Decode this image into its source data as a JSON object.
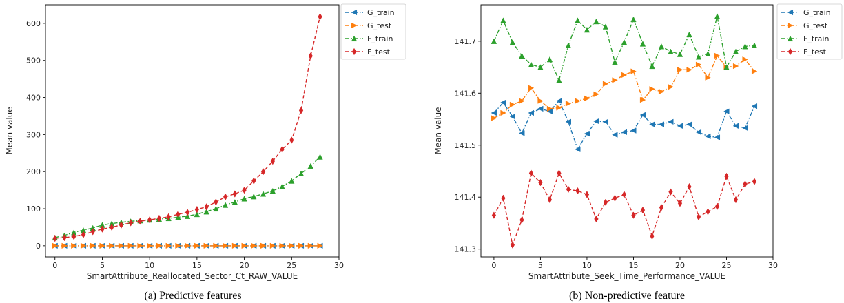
{
  "chart_data": [
    {
      "type": "line",
      "caption": "(a)  Predictive features",
      "xlabel": "SmartAttribute_Reallocated_Sector_Ct_RAW_VALUE",
      "ylabel": "Mean value",
      "xlim": [
        -1,
        30
      ],
      "ylim": [
        -30,
        650
      ],
      "xticks": [
        0,
        5,
        10,
        15,
        20,
        25,
        30
      ],
      "yticks": [
        0,
        100,
        200,
        300,
        400,
        500,
        600
      ],
      "grid": false,
      "legend_position": "outside-right-top",
      "x": [
        0,
        1,
        2,
        3,
        4,
        5,
        6,
        7,
        8,
        9,
        10,
        11,
        12,
        13,
        14,
        15,
        16,
        17,
        18,
        19,
        20,
        21,
        22,
        23,
        24,
        25,
        26,
        27,
        28
      ],
      "series": [
        {
          "name": "G_train",
          "color": "#1f77b4",
          "marker": "triangle-left",
          "linestyle": "dash-dot",
          "values": [
            0,
            0,
            0,
            0,
            0,
            0,
            0,
            0,
            0,
            0,
            0,
            0,
            0,
            0,
            0,
            0,
            0,
            0,
            0,
            0,
            0,
            0,
            0,
            0,
            0,
            0,
            0,
            0,
            0
          ]
        },
        {
          "name": "G_test",
          "color": "#ff7f0e",
          "marker": "triangle-right",
          "linestyle": "dash-dot",
          "values": [
            0,
            0,
            0,
            0,
            0,
            0,
            0,
            0,
            0,
            0,
            0,
            0,
            0,
            0,
            0,
            0,
            0,
            0,
            0,
            0,
            0,
            0,
            0,
            0,
            0,
            0,
            0,
            0,
            0
          ]
        },
        {
          "name": "F_train",
          "color": "#2ca02c",
          "marker": "triangle-up",
          "linestyle": "dash-dot",
          "values": [
            22,
            28,
            36,
            42,
            48,
            56,
            60,
            63,
            66,
            68,
            70,
            72,
            74,
            77,
            80,
            85,
            92,
            100,
            110,
            118,
            127,
            133,
            140,
            148,
            160,
            175,
            195,
            215,
            240
          ]
        },
        {
          "name": "F_test",
          "color": "#d62728",
          "marker": "diamond",
          "linestyle": "dashed",
          "values": [
            20,
            22,
            25,
            30,
            38,
            45,
            50,
            56,
            62,
            66,
            70,
            74,
            78,
            85,
            90,
            98,
            105,
            118,
            132,
            140,
            150,
            175,
            200,
            228,
            260,
            285,
            365,
            512,
            618
          ]
        }
      ]
    },
    {
      "type": "line",
      "caption": "(b)  Non-predictive feature",
      "xlabel": "SmartAttribute_Seek_Time_Performance_VALUE",
      "ylabel": "Mean value",
      "xlim": [
        -1.4,
        30
      ],
      "ylim": [
        141.285,
        141.77
      ],
      "xticks": [
        0,
        5,
        10,
        15,
        20,
        25,
        30
      ],
      "yticks": [
        141.3,
        141.4,
        141.5,
        141.6,
        141.7
      ],
      "grid": false,
      "legend_position": "outside-right-top",
      "x": [
        0,
        1,
        2,
        3,
        4,
        5,
        6,
        7,
        8,
        9,
        10,
        11,
        12,
        13,
        14,
        15,
        16,
        17,
        18,
        19,
        20,
        21,
        22,
        23,
        24,
        25,
        26,
        27,
        28
      ],
      "series": [
        {
          "name": "G_train",
          "color": "#1f77b4",
          "marker": "triangle-left",
          "linestyle": "dash-dot",
          "values": [
            141.562,
            141.582,
            141.555,
            141.523,
            141.562,
            141.57,
            141.565,
            141.585,
            141.545,
            141.492,
            141.522,
            141.546,
            141.545,
            141.52,
            141.525,
            141.528,
            141.558,
            141.54,
            141.54,
            141.545,
            141.537,
            141.54,
            141.525,
            141.517,
            141.515,
            141.565,
            141.537,
            141.533,
            141.575
          ]
        },
        {
          "name": "G_test",
          "color": "#ff7f0e",
          "marker": "triangle-right",
          "linestyle": "dash-dot",
          "values": [
            141.552,
            141.562,
            141.578,
            141.585,
            141.61,
            141.585,
            141.57,
            141.572,
            141.58,
            141.585,
            141.59,
            141.598,
            141.618,
            141.625,
            141.635,
            141.642,
            141.587,
            141.608,
            141.603,
            141.612,
            141.645,
            141.645,
            141.655,
            141.63,
            141.672,
            141.65,
            141.652,
            141.665,
            141.642
          ]
        },
        {
          "name": "F_train",
          "color": "#2ca02c",
          "marker": "triangle-up",
          "linestyle": "dash-dot",
          "values": [
            141.7,
            141.74,
            141.698,
            141.672,
            141.655,
            141.65,
            141.665,
            141.625,
            141.692,
            141.74,
            141.722,
            141.738,
            141.728,
            141.66,
            141.698,
            141.742,
            141.695,
            141.652,
            141.69,
            141.68,
            141.675,
            141.713,
            141.67,
            141.676,
            141.748,
            141.65,
            141.68,
            141.69,
            141.692
          ]
        },
        {
          "name": "F_test",
          "color": "#d62728",
          "marker": "diamond",
          "linestyle": "dashed",
          "values": [
            141.365,
            141.398,
            141.308,
            141.356,
            141.446,
            141.428,
            141.395,
            141.446,
            141.415,
            141.412,
            141.405,
            141.358,
            141.39,
            141.398,
            141.405,
            141.365,
            141.375,
            141.325,
            141.38,
            141.41,
            141.388,
            141.42,
            141.362,
            141.372,
            141.382,
            141.44,
            141.395,
            141.425,
            141.43
          ]
        }
      ]
    }
  ]
}
